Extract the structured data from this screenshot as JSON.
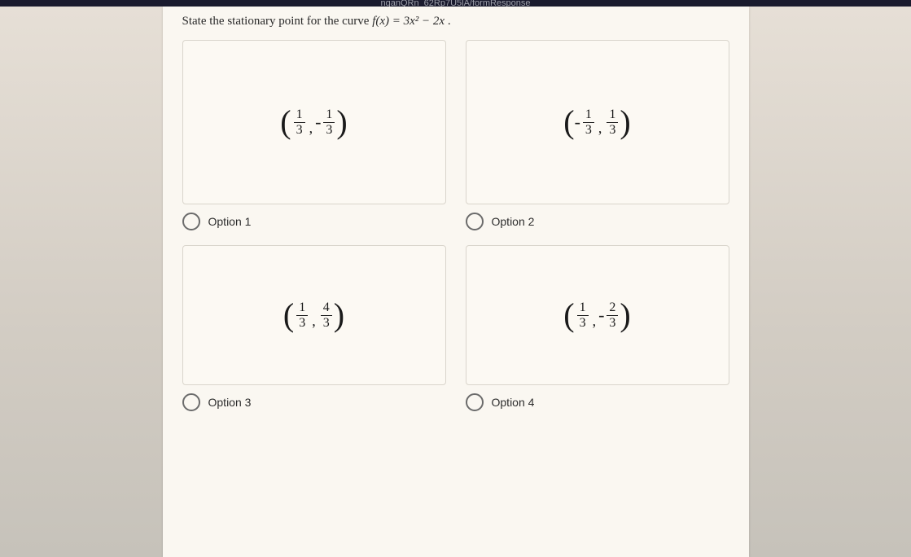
{
  "browser": {
    "url_fragment": "nganQRn_62Rp7U5lA/formResponse"
  },
  "question": {
    "prefix": "State the stationary point for the curve ",
    "function_lhs": "f(x)",
    "function_rhs": "= 3x² − 2x",
    "suffix": "."
  },
  "options": [
    {
      "label": "Option 1",
      "expr": {
        "a_sign": "",
        "a_num": "1",
        "a_den": "3",
        "b_sign": "-",
        "b_num": "1",
        "b_den": "3"
      }
    },
    {
      "label": "Option 2",
      "expr": {
        "a_sign": "-",
        "a_num": "1",
        "a_den": "3",
        "b_sign": "",
        "b_num": "1",
        "b_den": "3"
      }
    },
    {
      "label": "Option 3",
      "expr": {
        "a_sign": "",
        "a_num": "1",
        "a_den": "3",
        "b_sign": "",
        "b_num": "4",
        "b_den": "3"
      }
    },
    {
      "label": "Option 4",
      "expr": {
        "a_sign": "",
        "a_num": "1",
        "a_den": "3",
        "b_sign": "-",
        "b_num": "2",
        "b_den": "3"
      }
    }
  ],
  "styling": {
    "card_bg": "#faf7f1",
    "page_bg_top": "#e6dfd6",
    "page_bg_bottom": "#c6c2ba",
    "box_border": "#d9d5cc",
    "radio_border": "#6b6b6b",
    "text_color": "#2a2a2a",
    "math_fontsize_pt": 16,
    "question_fontsize_pt": 11,
    "option_label_fontsize_pt": 11
  }
}
